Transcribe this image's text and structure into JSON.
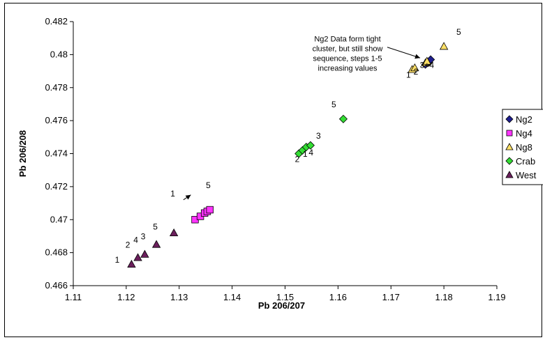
{
  "chart_data": {
    "type": "scatter",
    "title": "",
    "xlabel": "Pb 206/207",
    "ylabel": "Pb 206/208",
    "xlim": [
      1.11,
      1.19
    ],
    "ylim": [
      0.466,
      0.482
    ],
    "x_ticks": [
      "1.11",
      "1.12",
      "1.13",
      "1.14",
      "1.15",
      "1.16",
      "1.17",
      "1.18",
      "1.19"
    ],
    "y_ticks": [
      "0.466",
      "0.468",
      "0.47",
      "0.472",
      "0.474",
      "0.476",
      "0.478",
      "0.48",
      "0.482"
    ],
    "grid": false,
    "legend_position": "right",
    "series": [
      {
        "name": "Ng2",
        "marker": "diamond",
        "color": "#1F1F8F",
        "x": [
          1.1765,
          1.177,
          1.1772,
          1.1775
        ],
        "y": [
          0.4794,
          0.4795,
          0.4796,
          0.4797
        ]
      },
      {
        "name": "Ng4",
        "marker": "square",
        "color": "#FF33FF",
        "x": [
          1.133,
          1.134,
          1.1348,
          1.1353,
          1.1358
        ],
        "y": [
          0.47,
          0.4702,
          0.4704,
          0.4705,
          0.4706
        ]
      },
      {
        "name": "Ng8",
        "marker": "triangle",
        "color": "#FFE066",
        "x": [
          1.174,
          1.1745,
          1.1765,
          1.1768,
          1.18
        ],
        "y": [
          0.4791,
          0.4792,
          0.4795,
          0.4796,
          0.4805
        ]
      },
      {
        "name": "Crab",
        "marker": "diamond",
        "color": "#33DD33",
        "x": [
          1.1526,
          1.1533,
          1.154,
          1.1548,
          1.161
        ],
        "y": [
          0.474,
          0.4742,
          0.4744,
          0.4745,
          0.4761
        ]
      },
      {
        "name": "West",
        "marker": "triangle",
        "color": "#6B1F5C",
        "x": [
          1.121,
          1.1222,
          1.1235,
          1.1257,
          1.129
        ],
        "y": [
          0.4673,
          0.4677,
          0.4679,
          0.4685,
          0.4692
        ]
      }
    ],
    "point_labels": [
      {
        "text": "1",
        "x": 1.1183,
        "y": 0.4674
      },
      {
        "text": "2",
        "x": 1.1203,
        "y": 0.4683
      },
      {
        "text": "4",
        "x": 1.1218,
        "y": 0.4686
      },
      {
        "text": "3",
        "x": 1.1232,
        "y": 0.4688
      },
      {
        "text": "5",
        "x": 1.1255,
        "y": 0.4694
      },
      {
        "text": "1",
        "x": 1.1288,
        "y": 0.4714
      },
      {
        "text": "5",
        "x": 1.1355,
        "y": 0.4719
      },
      {
        "text": "2",
        "x": 1.1523,
        "y": 0.4735
      },
      {
        "text": "1",
        "x": 1.1538,
        "y": 0.4738
      },
      {
        "text": "4",
        "x": 1.1549,
        "y": 0.4739
      },
      {
        "text": "3",
        "x": 1.1563,
        "y": 0.4749
      },
      {
        "text": "5",
        "x": 1.1592,
        "y": 0.4768
      },
      {
        "text": "1",
        "x": 1.1733,
        "y": 0.4786
      },
      {
        "text": "2",
        "x": 1.1747,
        "y": 0.4788
      },
      {
        "text": "3+4",
        "x": 1.1768,
        "y": 0.4792
      },
      {
        "text": "5",
        "x": 1.1828,
        "y": 0.4812
      }
    ],
    "annotations": [
      {
        "lines": [
          "Ng2 Data form tight",
          "cluster, but still show",
          "sequence, steps 1-5",
          "increasing values"
        ],
        "x": 1.1618,
        "y": 0.4808
      }
    ],
    "arrows": [
      {
        "from": [
          1.1693,
          0.48045
        ],
        "to": [
          1.1755,
          0.4798
        ]
      },
      {
        "from": [
          1.1308,
          0.4712
        ],
        "to": [
          1.1322,
          0.4715
        ]
      }
    ]
  }
}
